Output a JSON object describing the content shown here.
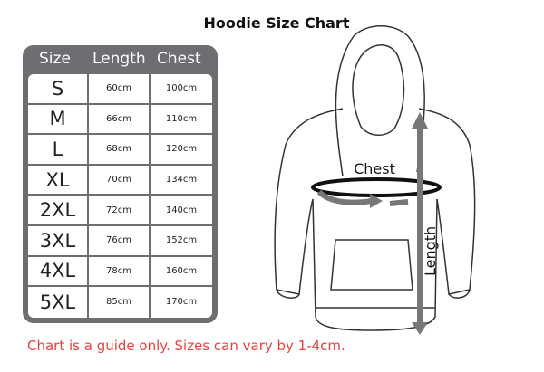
{
  "title": "Hoodie Size Chart",
  "table": {
    "headers": [
      "Size",
      "Length",
      "Chest"
    ],
    "rows": [
      [
        "S",
        "60cm",
        "100cm"
      ],
      [
        "M",
        "66cm",
        "110cm"
      ],
      [
        "L",
        "68cm",
        "120cm"
      ],
      [
        "XL",
        "70cm",
        "134cm"
      ],
      [
        "2XL",
        "72cm",
        "140cm"
      ],
      [
        "3XL",
        "76cm",
        "152cm"
      ],
      [
        "4XL",
        "78cm",
        "160cm"
      ],
      [
        "5XL",
        "85cm",
        "170cm"
      ]
    ]
  },
  "diagram": {
    "chest_label": "Chest",
    "length_label": "Length"
  },
  "note": "Chart is a guide only. Sizes can vary by 1-4cm.",
  "colors": {
    "table_gray": "#6d6e71",
    "note_red": "#e8413f",
    "arrow_gray": "#777777"
  }
}
